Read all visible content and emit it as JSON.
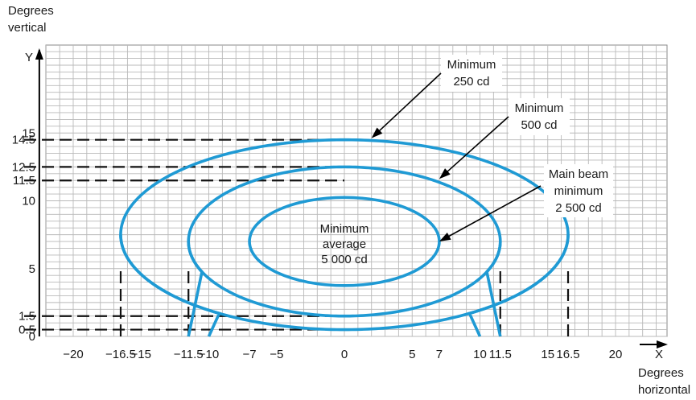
{
  "chart_data": {
    "type": "diagram-contour",
    "x_axis": {
      "letter": "X",
      "title_lines": [
        "Degrees",
        "horizontal"
      ],
      "range": [
        -25,
        24
      ],
      "grid_step": 1,
      "tick_labels": [
        {
          "value": -20,
          "text": "−20"
        },
        {
          "value": -16.5,
          "text": "−16.5"
        },
        {
          "value": -15,
          "text": "−15"
        },
        {
          "value": -11.5,
          "text": "−11.5"
        },
        {
          "value": -10,
          "text": "−10"
        },
        {
          "value": -7,
          "text": "−7"
        },
        {
          "value": -5,
          "text": "−5"
        },
        {
          "value": 0,
          "text": "0"
        },
        {
          "value": 5,
          "text": "5"
        },
        {
          "value": 7,
          "text": "7"
        },
        {
          "value": 10,
          "text": "10"
        },
        {
          "value": 11.5,
          "text": "11.5"
        },
        {
          "value": 15,
          "text": "15"
        },
        {
          "value": 16.5,
          "text": "16.5"
        },
        {
          "value": 20,
          "text": "20"
        }
      ]
    },
    "y_axis": {
      "letter": "Y",
      "title_lines": [
        "Degrees",
        "vertical"
      ],
      "range": [
        0,
        21
      ],
      "grid_step": 0.5,
      "tick_labels": [
        {
          "value": 0,
          "text": "0"
        },
        {
          "value": 0.5,
          "text": "0.5"
        },
        {
          "value": 1.5,
          "text": "1.5"
        },
        {
          "value": 5,
          "text": "5"
        },
        {
          "value": 10,
          "text": "10"
        },
        {
          "value": 11.5,
          "text": "11.5"
        },
        {
          "value": 12.5,
          "text": "12.5"
        },
        {
          "value": 14.5,
          "text": "14.5"
        },
        {
          "value": 15,
          "text": "15"
        }
      ]
    },
    "grid": true,
    "contours": [
      {
        "half_width": 16.5,
        "y_min": 0.5,
        "y_max": 14.5
      },
      {
        "half_width": 11.5,
        "y_min": 1.5,
        "y_max": 12.5
      },
      {
        "half_width": 7,
        "y_min": 5,
        "y_max": 11.5,
        "y_center": 7
      }
    ],
    "guide_lines": {
      "horizontal": [
        14.5,
        12.5,
        11.5,
        1.5,
        0.5
      ],
      "vertical": [
        -16.5,
        -11.5,
        11.5,
        16.5
      ]
    },
    "annotations": [
      {
        "lines": [
          "Minimum",
          "250 cd"
        ],
        "points_to": [
          2,
          14.5
        ]
      },
      {
        "lines": [
          "Minimum",
          "500 cd"
        ],
        "points_to": [
          7,
          11.5
        ]
      },
      {
        "lines": [
          "Main beam",
          "minimum",
          "2 500 cd"
        ],
        "points_to": [
          7,
          7
        ]
      }
    ],
    "center_label": [
      "Minimum",
      "average",
      "5 000 cd"
    ]
  }
}
